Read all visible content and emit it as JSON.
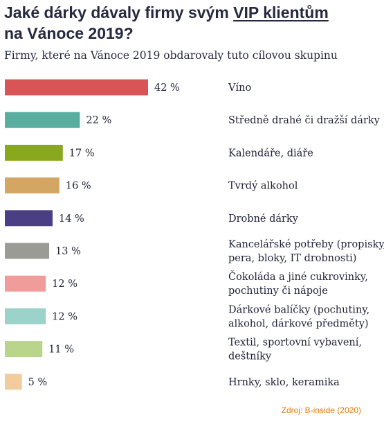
{
  "header": {
    "title_pre": "Jaké dárky dávaly firmy svým ",
    "title_link": "VIP klientům",
    "title_line2": "na Vánoce 2019?",
    "subtitle": "Firmy, které na Vánoce 2019 obdarovaly tuto cílovou skupinu"
  },
  "source": "Zdroj: B-inside (2020)",
  "chart_data": {
    "type": "bar",
    "orientation": "horizontal",
    "value_suffix": " %",
    "categories": [
      "Víno",
      "Středně drahé či dražší dárky",
      "Kalendáře, diáře",
      "Tvrdý alkohol",
      "Drobné dárky",
      "Kancelářské potřeby (propisky, pera, bloky, IT drobnosti)",
      "Čokoláda a jiné cukrovinky, pochutiny či nápoje",
      "Dárkové balíčky (pochutiny, alkohol, dárkové předměty)",
      "Textil, sportovní vybavení, deštníky",
      "Hrnky, sklo, keramika"
    ],
    "category_lines": [
      [
        "Víno"
      ],
      [
        "Středně drahé či dražší dárky"
      ],
      [
        "Kalendáře, diáře"
      ],
      [
        "Tvrdý alkohol"
      ],
      [
        "Drobné dárky"
      ],
      [
        "Kancelářské potřeby (propisky,",
        "pera, bloky, IT drobnosti)"
      ],
      [
        "Čokoláda a jiné cukrovinky,",
        "pochutiny či nápoje"
      ],
      [
        "Dárkové balíčky (pochutiny,",
        "alkohol, dárkové předměty)"
      ],
      [
        "Textil, sportovní vybavení,",
        "deštníky"
      ],
      [
        "Hrnky, sklo, keramika"
      ]
    ],
    "values": [
      42,
      22,
      17,
      16,
      14,
      13,
      12,
      12,
      11,
      5
    ],
    "colors": [
      "#d95555",
      "#5aaea0",
      "#8aa81e",
      "#d4a664",
      "#4a3f85",
      "#9b9b95",
      "#f09c9a",
      "#9bd3cb",
      "#b9d58b",
      "#f2cc9c"
    ],
    "xlim": [
      0,
      42
    ],
    "grid": false,
    "legend": "none"
  }
}
